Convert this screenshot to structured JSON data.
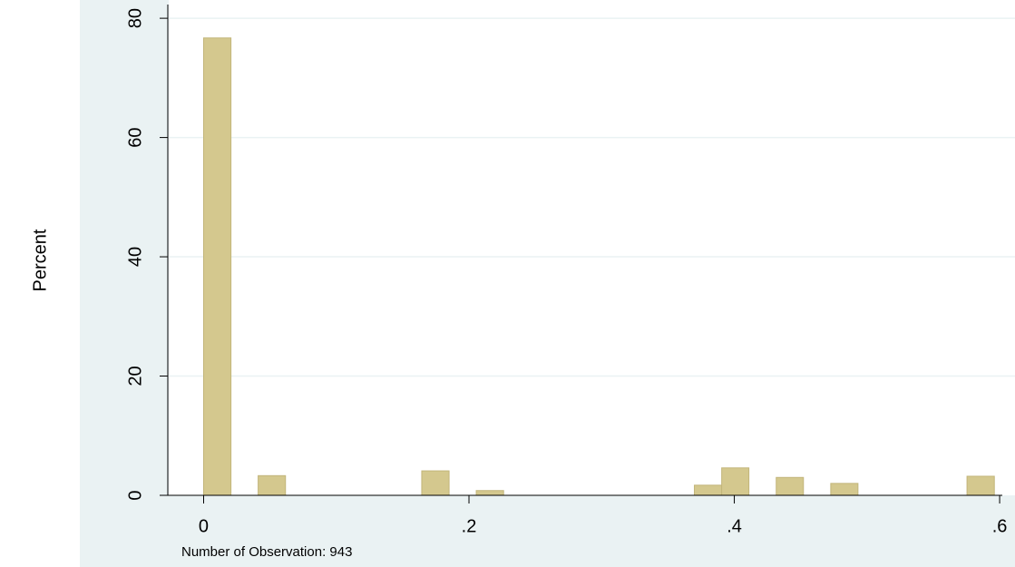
{
  "chart_data": {
    "type": "histogram",
    "y_label": "Percent",
    "note": "Number of Observation: 943",
    "bins": [
      0,
      0.0206,
      0.0411,
      0.0617,
      0.0822,
      0.1028,
      0.1233,
      0.1439,
      0.1644,
      0.185,
      0.2055,
      0.2261,
      0.2466,
      0.2672,
      0.2877,
      0.3083,
      0.3288,
      0.3494,
      0.3699,
      0.3905,
      0.411,
      0.4316,
      0.4521,
      0.4727,
      0.4932,
      0.5138,
      0.5343,
      0.5549,
      0.5754,
      0.596
    ],
    "values": [
      76.7,
      0,
      3.3,
      0,
      0,
      0,
      0,
      0,
      4.1,
      0,
      0.8,
      0,
      0,
      0,
      0,
      0,
      0,
      0,
      1.7,
      4.6,
      0,
      3.0,
      0,
      2.0,
      0,
      0,
      0,
      0,
      3.2
    ],
    "color": "#d4c88e",
    "xlim": [
      -0.027,
      0.602
    ],
    "ylim": [
      0,
      82.3
    ],
    "xticks": [
      0,
      {
        "value": 0.2,
        "label": ".2"
      },
      {
        "value": 0.4,
        "label": ".4"
      },
      {
        "value": 0.6,
        "label": ".6"
      }
    ],
    "yticks": [
      0,
      20,
      40,
      60,
      80
    ],
    "grid": true
  }
}
